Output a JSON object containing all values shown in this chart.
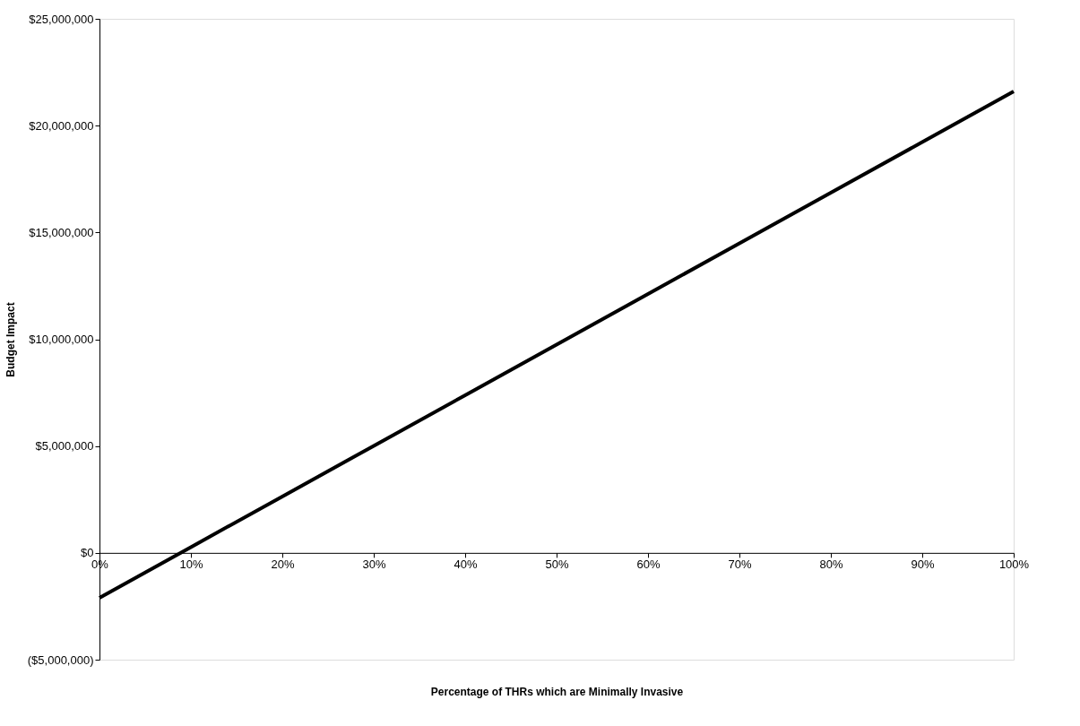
{
  "chart_data": {
    "type": "line",
    "xlabel": "Percentage of THRs which are Minimally Invasive",
    "ylabel": "Budget Impact",
    "x": [
      0,
      10,
      20,
      30,
      40,
      50,
      60,
      70,
      80,
      90,
      100
    ],
    "series": [
      {
        "color": "#000000",
        "values": [
          -2100000,
          270000,
          2640000,
          5010000,
          7380000,
          9750000,
          12120000,
          14490000,
          16860000,
          19230000,
          21600000
        ]
      }
    ],
    "xlim": [
      0,
      100
    ],
    "xticks": [
      {
        "value": 0,
        "label": "0%"
      },
      {
        "value": 10,
        "label": "10%"
      },
      {
        "value": 20,
        "label": "20%"
      },
      {
        "value": 30,
        "label": "30%"
      },
      {
        "value": 40,
        "label": "40%"
      },
      {
        "value": 50,
        "label": "50%"
      },
      {
        "value": 60,
        "label": "60%"
      },
      {
        "value": 70,
        "label": "70%"
      },
      {
        "value": 80,
        "label": "80%"
      },
      {
        "value": 90,
        "label": "90%"
      },
      {
        "value": 100,
        "label": "100%"
      }
    ],
    "ylim": [
      -5000000,
      25000000
    ],
    "yticks": [
      {
        "value": -5000000,
        "label": "($5,000,000)"
      },
      {
        "value": 0,
        "label": "$0"
      },
      {
        "value": 5000000,
        "label": "$5,000,000"
      },
      {
        "value": 10000000,
        "label": "$10,000,000"
      },
      {
        "value": 15000000,
        "label": "$15,000,000"
      },
      {
        "value": 20000000,
        "label": "$20,000,000"
      },
      {
        "value": 25000000,
        "label": "$25,000,000"
      }
    ],
    "grid": false,
    "marker": "none",
    "line_style": "solid"
  }
}
